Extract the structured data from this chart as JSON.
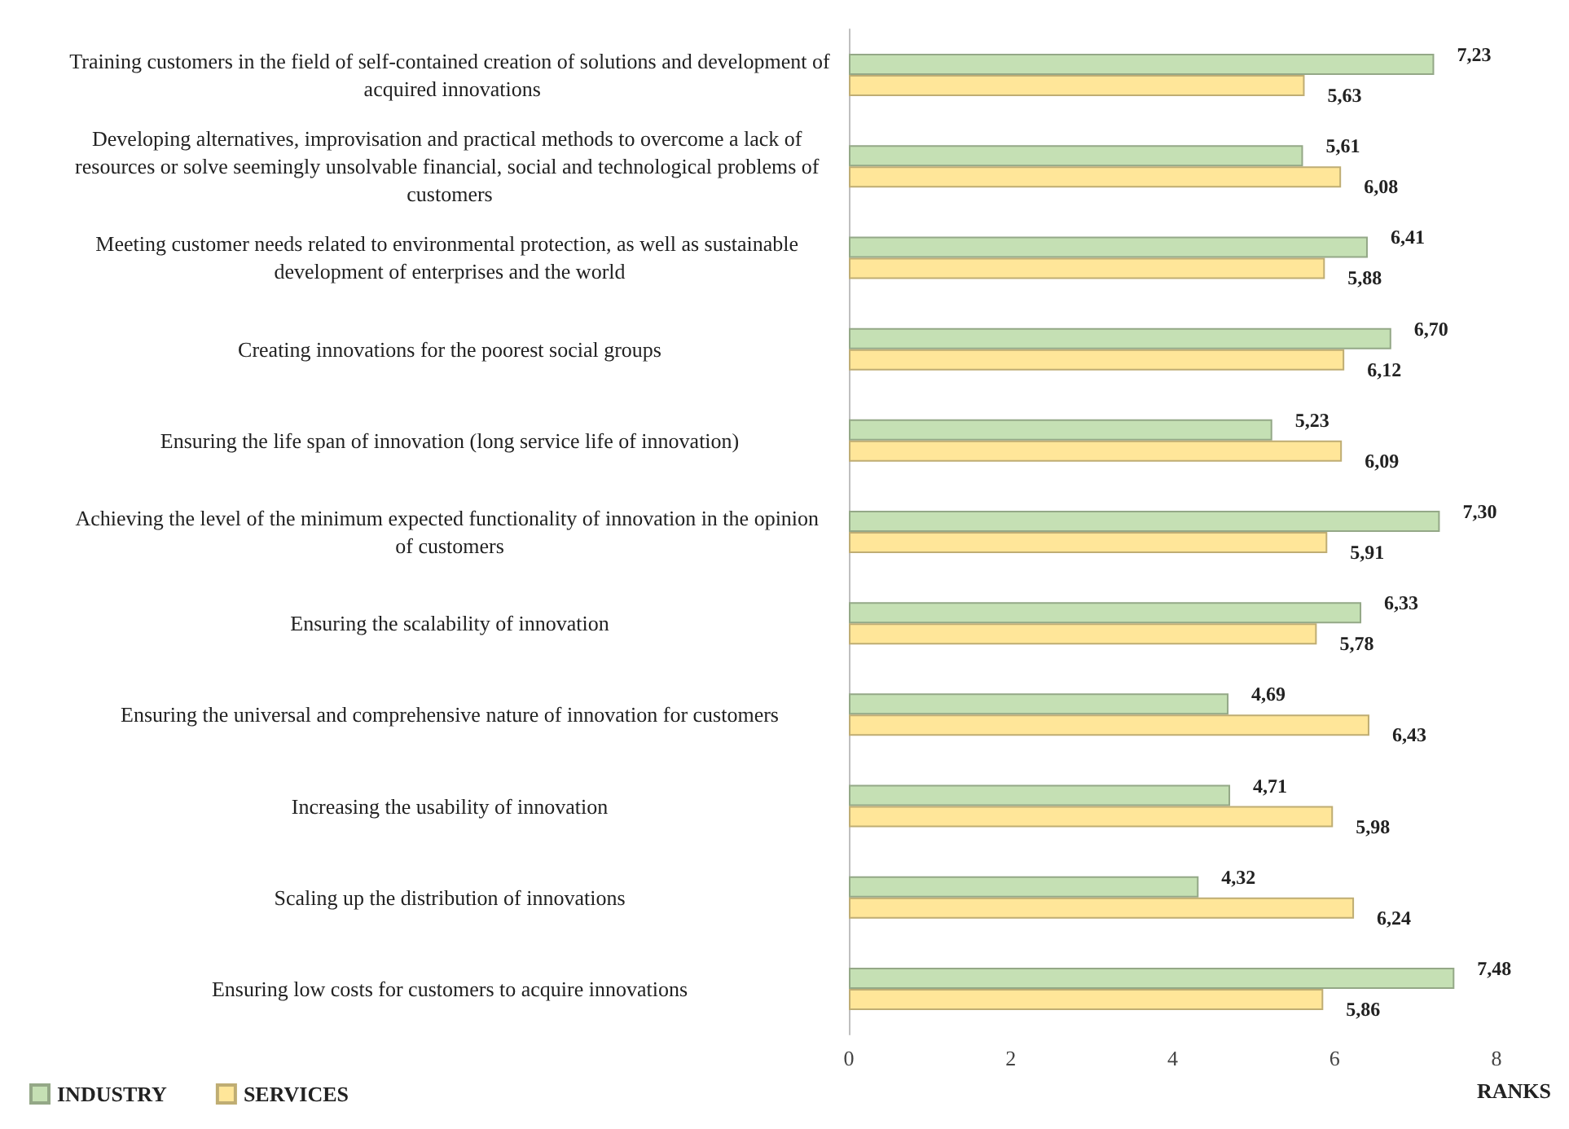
{
  "chart_data": {
    "type": "bar",
    "orientation": "horizontal",
    "xlabel": "RANKS",
    "categories": [
      "Training customers in the field of self-contained creation of solutions and development of acquired innovations",
      "Developing alternatives, improvisation and practical methods to overcome a lack of resources or solve seemingly unsolvable financial, social and technological problems of customers",
      "Meeting customer needs related to environmental protection, as well as sustainable development of enterprises and the world",
      "Creating innovations for the poorest social groups",
      "Ensuring the life span of innovation (long service life of innovation)",
      "Achieving the level of the minimum expected functionality of innovation in the opinion of customers",
      "Ensuring the scalability of innovation",
      "Ensuring the universal and comprehensive nature of innovation for customers",
      "Increasing the usability of innovation",
      "Scaling up the distribution of innovations",
      "Ensuring low costs for customers to acquire innovations"
    ],
    "series": [
      {
        "name": "INDUSTRY",
        "color": "#c5e0b4",
        "values": [
          7.23,
          5.61,
          6.41,
          6.7,
          5.23,
          7.3,
          6.33,
          4.69,
          4.71,
          4.32,
          7.48
        ],
        "value_labels": [
          "7,23",
          "5,61",
          "6,41",
          "6,70",
          "5,23",
          "7,30",
          "6,33",
          "4,69",
          "4,71",
          "4,32",
          "7,48"
        ]
      },
      {
        "name": "SERVICES",
        "color": "#ffe699",
        "values": [
          5.63,
          6.08,
          5.88,
          6.12,
          6.09,
          5.91,
          5.78,
          6.43,
          5.98,
          6.24,
          5.86
        ],
        "value_labels": [
          "5,63",
          "6,08",
          "5,88",
          "6,12",
          "6,09",
          "5,91",
          "5,78",
          "6,43",
          "5,98",
          "6,24",
          "5,86"
        ]
      }
    ],
    "xlim": [
      0,
      8
    ],
    "xticks": [
      0,
      2,
      4,
      6,
      8
    ],
    "grid": false,
    "legend": "bottom left"
  }
}
